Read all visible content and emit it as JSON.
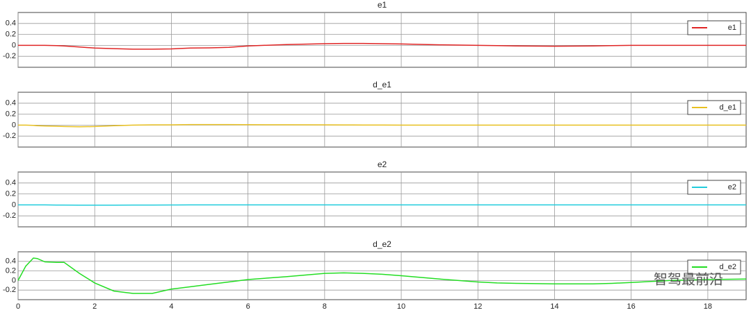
{
  "chart_data": [
    {
      "type": "line",
      "title": "e1",
      "xlim": [
        0,
        19
      ],
      "xticks": [
        0,
        2,
        4,
        6,
        8,
        10,
        12,
        14,
        16,
        18
      ],
      "ylim": [
        -0.4,
        0.6
      ],
      "yticks": [
        0.4,
        0.2,
        0,
        -0.2
      ],
      "grid": true,
      "legend": "top-right",
      "x": [
        0,
        0.2,
        0.4,
        0.5,
        0.7,
        1,
        1.2,
        1.6,
        2,
        2.5,
        3,
        3.5,
        4,
        4.5,
        5,
        5.5,
        6,
        7,
        8,
        8.5,
        9,
        9.5,
        10,
        11,
        12,
        12.5,
        13,
        14,
        15,
        15.5,
        16,
        17,
        18,
        19
      ],
      "series": [
        {
          "name": "e1",
          "color": "#e02424",
          "values": [
            0,
            0,
            0,
            0,
            0,
            -0.005,
            -0.01,
            -0.03,
            -0.05,
            -0.06,
            -0.07,
            -0.07,
            -0.065,
            -0.05,
            -0.045,
            -0.035,
            -0.01,
            0.015,
            0.03,
            0.035,
            0.035,
            0.03,
            0.025,
            0.01,
            0,
            -0.005,
            -0.01,
            -0.015,
            -0.01,
            -0.005,
            0,
            0,
            0,
            0
          ]
        }
      ]
    },
    {
      "type": "line",
      "title": "d_e1",
      "xlim": [
        0,
        19
      ],
      "xticks": [
        0,
        2,
        4,
        6,
        8,
        10,
        12,
        14,
        16,
        18
      ],
      "ylim": [
        -0.4,
        0.6
      ],
      "yticks": [
        0.4,
        0.2,
        0,
        -0.2
      ],
      "grid": true,
      "legend": "top-right",
      "x": [
        0,
        0.2,
        0.4,
        0.5,
        0.7,
        1,
        1.2,
        1.6,
        2,
        2.5,
        3,
        3.5,
        4,
        4.5,
        5,
        5.5,
        6,
        7,
        8,
        8.5,
        9,
        9.5,
        10,
        11,
        12,
        12.5,
        13,
        14,
        15,
        15.5,
        16,
        17,
        18,
        19
      ],
      "series": [
        {
          "name": "d_e1",
          "color": "#e8c020",
          "values": [
            0,
            0,
            -0.005,
            -0.01,
            -0.015,
            -0.02,
            -0.025,
            -0.03,
            -0.025,
            -0.01,
            0,
            0.005,
            0.005,
            0.01,
            0.01,
            0.01,
            0.008,
            0.006,
            0.005,
            0.004,
            0.003,
            0.002,
            0,
            0,
            0,
            0,
            0,
            0,
            0,
            0,
            0,
            0,
            0,
            0
          ]
        }
      ]
    },
    {
      "type": "line",
      "title": "e2",
      "xlim": [
        0,
        19
      ],
      "xticks": [
        0,
        2,
        4,
        6,
        8,
        10,
        12,
        14,
        16,
        18
      ],
      "ylim": [
        -0.4,
        0.6
      ],
      "yticks": [
        0.4,
        0.2,
        0,
        -0.2
      ],
      "grid": true,
      "legend": "top-right",
      "x": [
        0,
        0.2,
        0.4,
        0.5,
        0.7,
        1,
        1.2,
        1.6,
        2,
        2.5,
        3,
        3.5,
        4,
        4.5,
        5,
        5.5,
        6,
        7,
        8,
        8.5,
        9,
        9.5,
        10,
        11,
        12,
        12.5,
        13,
        14,
        15,
        15.5,
        16,
        17,
        18,
        19
      ],
      "series": [
        {
          "name": "e2",
          "color": "#20ccdc",
          "values": [
            0,
            0,
            0,
            0,
            0,
            -0.002,
            -0.003,
            -0.005,
            -0.005,
            -0.004,
            -0.003,
            -0.002,
            -0.001,
            0,
            0,
            0,
            0,
            0,
            0,
            0,
            0,
            0,
            0,
            0,
            0,
            0,
            0,
            0,
            0,
            0,
            0,
            0,
            0,
            0
          ]
        }
      ]
    },
    {
      "type": "line",
      "title": "d_e2",
      "xlim": [
        0,
        19
      ],
      "xticks": [
        0,
        2,
        4,
        6,
        8,
        10,
        12,
        14,
        16,
        18
      ],
      "ylim": [
        -0.4,
        0.6
      ],
      "yticks": [
        0.4,
        0.2,
        0,
        -0.2
      ],
      "grid": true,
      "legend": "top-right",
      "x": [
        0,
        0.2,
        0.4,
        0.5,
        0.7,
        1,
        1.2,
        1.6,
        2,
        2.5,
        3,
        3.5,
        4,
        4.5,
        5,
        5.5,
        6,
        7,
        8,
        8.5,
        9,
        9.5,
        10,
        11,
        12,
        12.5,
        13,
        14,
        15,
        15.5,
        16,
        17,
        18,
        19
      ],
      "series": [
        {
          "name": "d_e2",
          "color": "#22dd22",
          "values": [
            0,
            0.3,
            0.47,
            0.46,
            0.39,
            0.38,
            0.38,
            0.15,
            -0.05,
            -0.22,
            -0.27,
            -0.27,
            -0.18,
            -0.13,
            -0.08,
            -0.03,
            0.02,
            0.08,
            0.15,
            0.16,
            0.15,
            0.13,
            0.1,
            0.03,
            -0.03,
            -0.05,
            -0.06,
            -0.07,
            -0.07,
            -0.06,
            -0.04,
            0,
            0.02,
            0.03
          ]
        }
      ]
    }
  ],
  "watermark": "智驾最前沿"
}
